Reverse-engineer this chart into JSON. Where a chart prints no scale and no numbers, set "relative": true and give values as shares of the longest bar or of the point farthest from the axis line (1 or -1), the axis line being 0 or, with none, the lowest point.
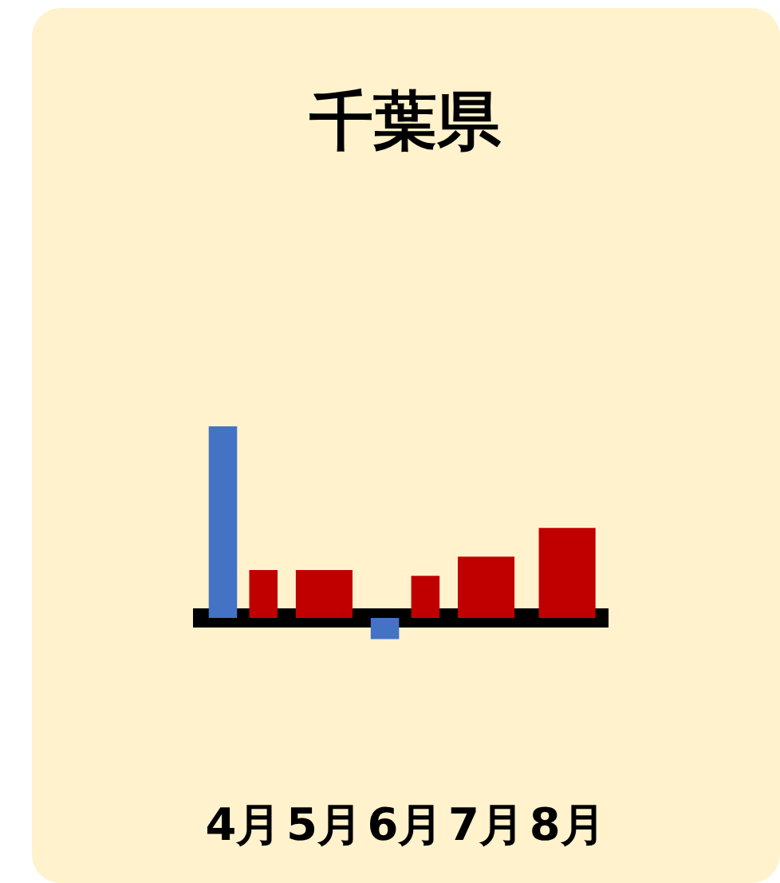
{
  "chart_data": {
    "type": "bar",
    "title": "千葉県",
    "relative": true,
    "categories": [
      "4月",
      "5月",
      "6月",
      "7月",
      "8月"
    ],
    "series": [
      {
        "color": "#4472c4",
        "values": [
          1,
          null,
          -0.11,
          null,
          null
        ]
      },
      {
        "color": "#c00000",
        "values": [
          0.25,
          0.25,
          0.22,
          0.32,
          0.47
        ]
      }
    ],
    "grid": false,
    "legend": false
  }
}
